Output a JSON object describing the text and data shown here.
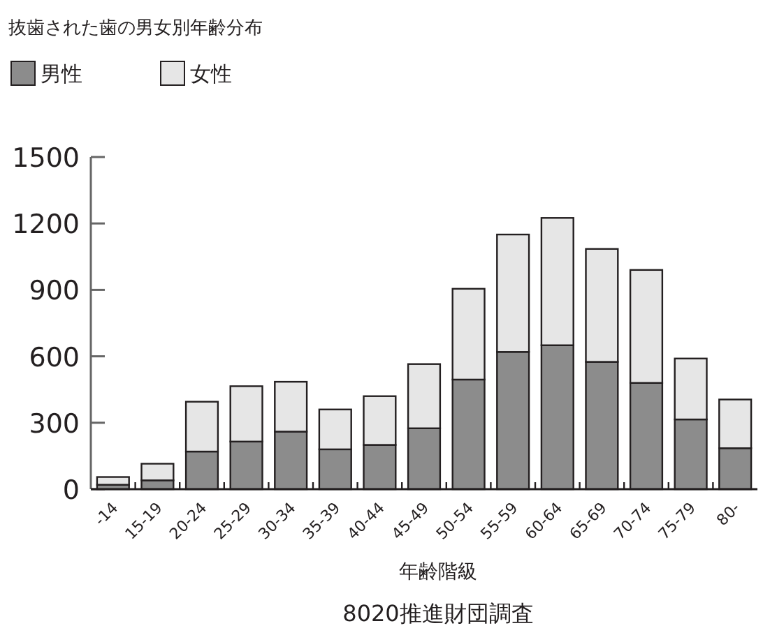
{
  "chart_data": {
    "type": "bar",
    "stacked": true,
    "title": "抜歯された歯の男女別年齢分布",
    "xlabel": "年齢階級",
    "annotations": [
      "8020推進財団調査"
    ],
    "categories": [
      "-14",
      "15-19",
      "20-24",
      "25-29",
      "30-34",
      "35-39",
      "40-44",
      "45-49",
      "50-54",
      "55-59",
      "60-64",
      "65-69",
      "70-74",
      "75-79",
      "80-"
    ],
    "series": [
      {
        "name": "男性",
        "color": "#8c8c8c",
        "values": [
          20,
          40,
          170,
          215,
          260,
          180,
          200,
          275,
          495,
          620,
          650,
          575,
          480,
          315,
          185
        ]
      },
      {
        "name": "女性",
        "color": "#e6e6e6",
        "values": [
          35,
          75,
          225,
          250,
          225,
          180,
          220,
          290,
          410,
          530,
          575,
          510,
          510,
          275,
          220
        ]
      }
    ],
    "ylim": [
      0,
      1500
    ],
    "yticks": [
      0,
      300,
      600,
      900,
      1200,
      1500
    ],
    "legend": "top left",
    "grid": false
  }
}
